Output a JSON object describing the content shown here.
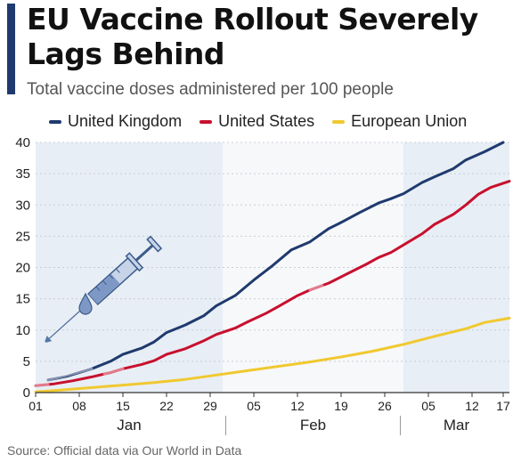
{
  "title": "EU Vaccine Rollout Severely Lags Behind",
  "subtitle": "Total vaccine doses administered per 100 people",
  "source": "Source: Official data via Our World in Data",
  "colors": {
    "accent_bar": "#1f3a6e",
    "uk": "#1f3a6e",
    "us": "#c8102e",
    "eu": "#f0c930",
    "shade": "#e8eef5",
    "grid": "#c9ced6"
  },
  "icons": [
    "syringe-icon"
  ],
  "chart_data": {
    "type": "line",
    "x_unit": "day of 2021",
    "xlim": [
      1,
      77
    ],
    "ylim": [
      0,
      40
    ],
    "yticks": [
      0,
      5,
      10,
      15,
      20,
      25,
      30,
      35,
      40
    ],
    "xticks": [
      {
        "day": 1,
        "label": "01"
      },
      {
        "day": 8,
        "label": "08"
      },
      {
        "day": 15,
        "label": "15"
      },
      {
        "day": 22,
        "label": "22"
      },
      {
        "day": 29,
        "label": "29"
      },
      {
        "day": 36,
        "label": "05"
      },
      {
        "day": 43,
        "label": "12"
      },
      {
        "day": 50,
        "label": "19"
      },
      {
        "day": 57,
        "label": "26"
      },
      {
        "day": 64,
        "label": "05"
      },
      {
        "day": 71,
        "label": "12"
      },
      {
        "day": 76,
        "label": "17"
      }
    ],
    "months": [
      {
        "label": "Jan",
        "from": 1,
        "to": 31
      },
      {
        "label": "Feb",
        "from": 32,
        "to": 59
      },
      {
        "label": "Mar",
        "from": 60,
        "to": 77
      }
    ],
    "shaded_months": [
      "Jan",
      "Mar"
    ],
    "series": [
      {
        "name": "United Kingdom",
        "color": "#1f3a6e",
        "points": [
          [
            3,
            2.0
          ],
          [
            6,
            2.6
          ],
          [
            10,
            3.8
          ],
          [
            13,
            5.0
          ],
          [
            15,
            6.1
          ],
          [
            18,
            7.1
          ],
          [
            20,
            8.1
          ],
          [
            22,
            9.6
          ],
          [
            25,
            10.8
          ],
          [
            28,
            12.3
          ],
          [
            30,
            13.9
          ],
          [
            33,
            15.5
          ],
          [
            36,
            18.0
          ],
          [
            39,
            20.3
          ],
          [
            42,
            22.8
          ],
          [
            45,
            24.1
          ],
          [
            48,
            26.2
          ],
          [
            50,
            27.2
          ],
          [
            53,
            28.8
          ],
          [
            56,
            30.3
          ],
          [
            58,
            31.0
          ],
          [
            60,
            31.8
          ],
          [
            63,
            33.6
          ],
          [
            65,
            34.5
          ],
          [
            68,
            35.8
          ],
          [
            70,
            37.2
          ],
          [
            73,
            38.5
          ],
          [
            76,
            40.0
          ]
        ],
        "faded_to": 10
      },
      {
        "name": "United States",
        "color": "#c8102e",
        "points": [
          [
            1,
            1.1
          ],
          [
            4,
            1.4
          ],
          [
            7,
            1.9
          ],
          [
            10,
            2.5
          ],
          [
            13,
            3.2
          ],
          [
            15,
            3.8
          ],
          [
            18,
            4.5
          ],
          [
            20,
            5.1
          ],
          [
            22,
            6.1
          ],
          [
            25,
            7.0
          ],
          [
            28,
            8.3
          ],
          [
            30,
            9.3
          ],
          [
            33,
            10.3
          ],
          [
            35,
            11.3
          ],
          [
            38,
            12.7
          ],
          [
            40,
            13.8
          ],
          [
            43,
            15.5
          ],
          [
            45,
            16.4
          ],
          [
            48,
            17.5
          ],
          [
            51,
            19.0
          ],
          [
            54,
            20.5
          ],
          [
            56,
            21.6
          ],
          [
            58,
            22.4
          ],
          [
            60,
            23.6
          ],
          [
            63,
            25.4
          ],
          [
            65,
            26.9
          ],
          [
            68,
            28.5
          ],
          [
            70,
            30.0
          ],
          [
            72,
            31.7
          ],
          [
            74,
            32.8
          ],
          [
            77,
            33.8
          ]
        ],
        "faded_ranges": [
          [
            1,
            3
          ],
          [
            12,
            15
          ],
          [
            45,
            47
          ]
        ]
      },
      {
        "name": "European Union",
        "color": "#f0c930",
        "points": [
          [
            1,
            0.1
          ],
          [
            5,
            0.4
          ],
          [
            10,
            0.8
          ],
          [
            15,
            1.2
          ],
          [
            20,
            1.6
          ],
          [
            25,
            2.1
          ],
          [
            30,
            2.8
          ],
          [
            35,
            3.5
          ],
          [
            40,
            4.2
          ],
          [
            45,
            4.9
          ],
          [
            50,
            5.7
          ],
          [
            55,
            6.6
          ],
          [
            60,
            7.7
          ],
          [
            65,
            9.0
          ],
          [
            70,
            10.2
          ],
          [
            73,
            11.2
          ],
          [
            77,
            11.9
          ]
        ]
      }
    ]
  }
}
